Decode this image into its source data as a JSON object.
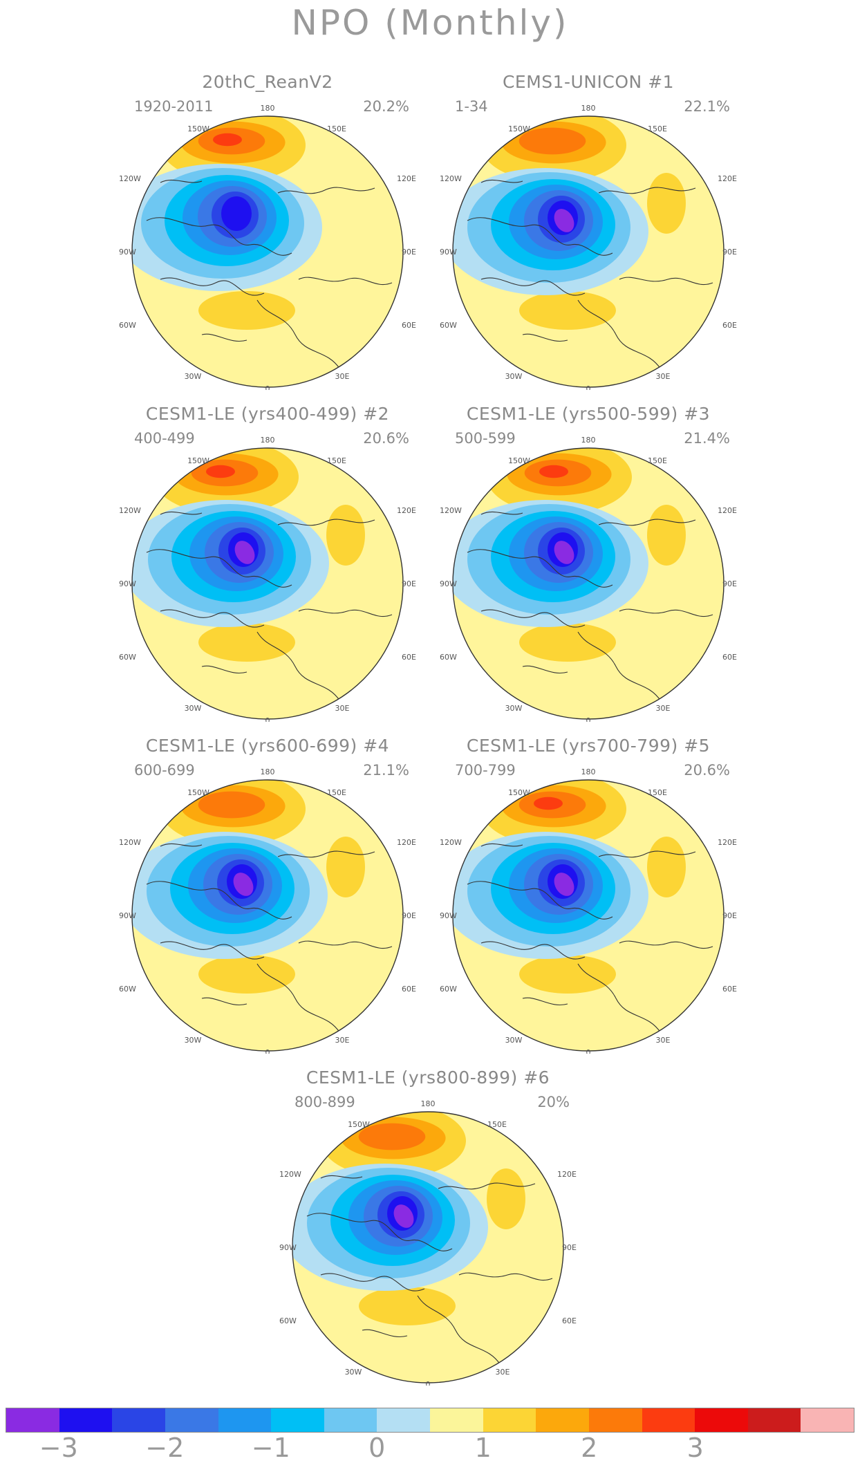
{
  "title": "NPO (Monthly)",
  "panels": [
    {
      "title": "20thC_ReanV2",
      "period": "1920-2011",
      "percent": "20.2%"
    },
    {
      "title": "CEMS1-UNICON      #1",
      "period": "1-34",
      "percent": "22.1%"
    },
    {
      "title": "CESM1-LE (yrs400-499) #2",
      "period": "400-499",
      "percent": "20.6%"
    },
    {
      "title": "CESM1-LE (yrs500-599) #3",
      "period": "500-599",
      "percent": "21.4%"
    },
    {
      "title": "CESM1-LE (yrs600-699) #4",
      "period": "600-699",
      "percent": "21.1%"
    },
    {
      "title": "CESM1-LE (yrs700-799) #5",
      "period": "700-799",
      "percent": "20.6%"
    },
    {
      "title": "CESM1-LE (yrs800-899) #6",
      "period": "800-899",
      "percent": "20%"
    }
  ],
  "lon_labels": {
    "top": "180",
    "upper_left": "150W",
    "upper_right": "150E",
    "left_upper": "120W",
    "right_upper": "120E",
    "left": "90W",
    "right": "90E",
    "left_lower": "60W",
    "right_lower": "60E",
    "lower_left": "30W",
    "lower_right": "30E",
    "bottom": "0"
  },
  "colorbar": {
    "colors": [
      "#8a2be2",
      "#1e10f0",
      "#2a45e6",
      "#3a78e6",
      "#1e96f0",
      "#00bff5",
      "#6ec7f2",
      "#b4dff3",
      "#fbf59a",
      "#fcd535",
      "#fca80c",
      "#fc7a0a",
      "#fc3c10",
      "#ec0a0a",
      "#cc1c1c",
      "#f9b4b4"
    ],
    "labels": [
      "-3",
      "-2",
      "-1",
      "0",
      "1",
      "2",
      "3"
    ]
  },
  "palette": {
    "background": "#fff59b",
    "coast": "#333333"
  }
}
